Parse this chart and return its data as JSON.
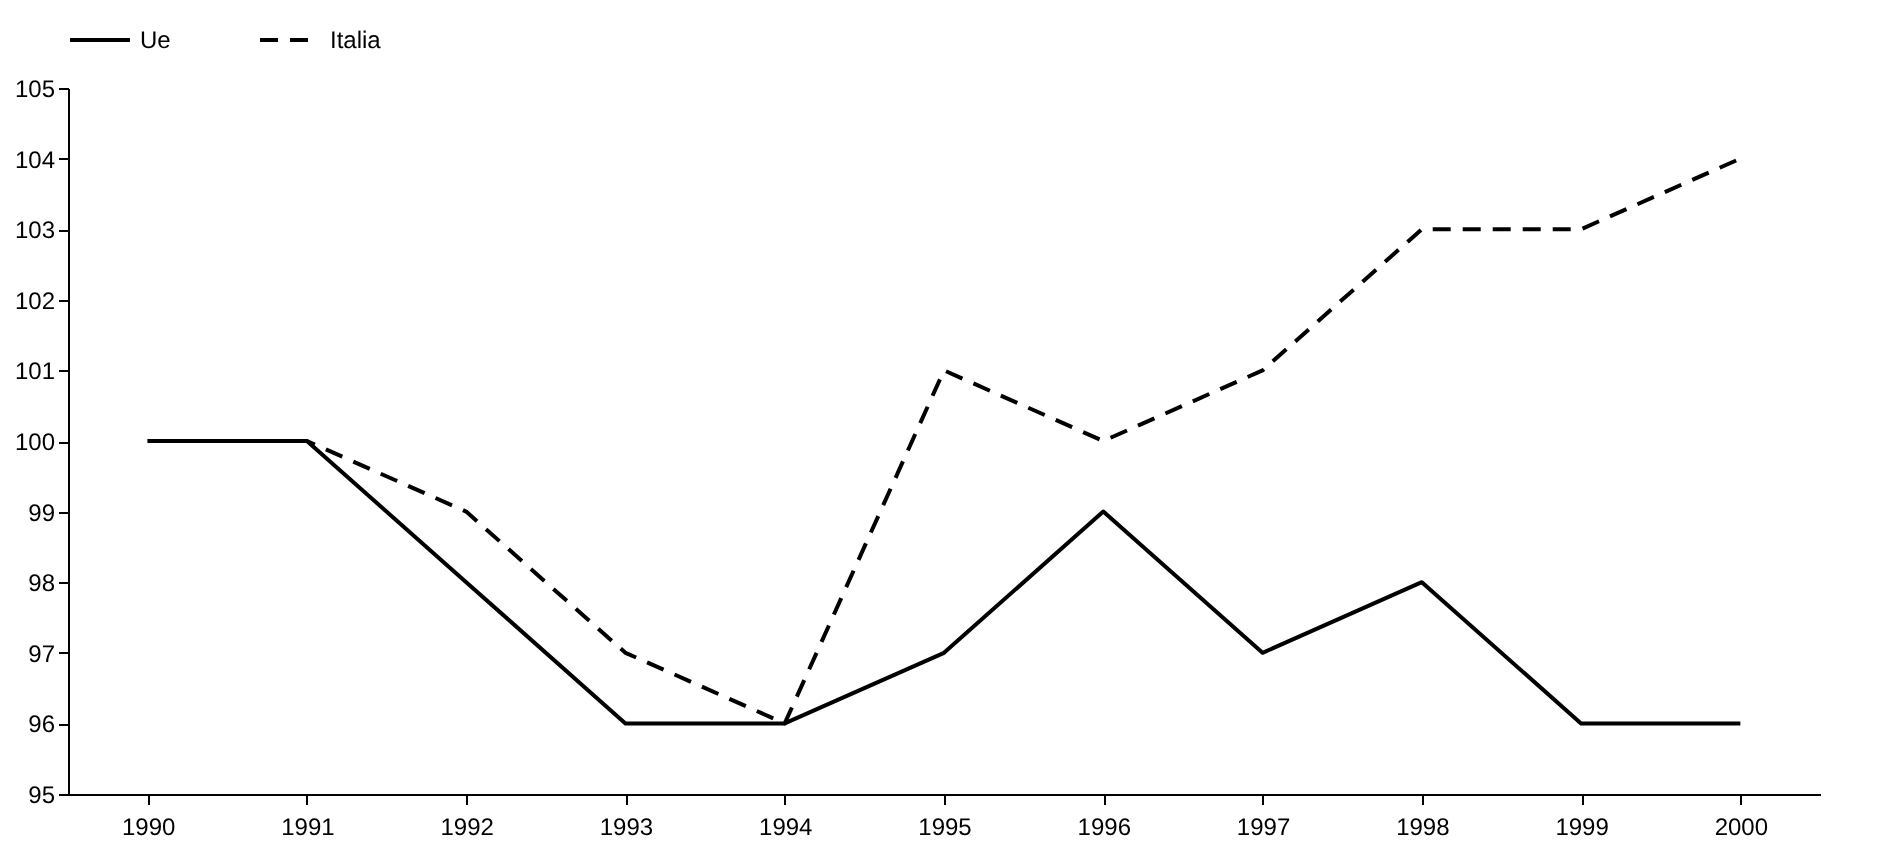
{
  "chart_data": {
    "type": "line",
    "categories": [
      "1990",
      "1991",
      "1992",
      "1993",
      "1994",
      "1995",
      "1996",
      "1997",
      "1998",
      "1999",
      "2000"
    ],
    "series": [
      {
        "name": "Ue",
        "color": "#000000",
        "line_style": "solid",
        "values": [
          100,
          100,
          98,
          96,
          96,
          97,
          99,
          97,
          98,
          96,
          96
        ]
      },
      {
        "name": "Italia",
        "color": "#000000",
        "line_style": "dashed",
        "values": [
          100,
          100,
          99,
          97,
          96,
          101,
          100,
          101,
          103,
          103,
          104
        ]
      }
    ],
    "ylim": [
      95,
      105
    ],
    "yticks": [
      95,
      96,
      97,
      98,
      99,
      100,
      101,
      102,
      103,
      104,
      105
    ],
    "grid": false,
    "legend": "top",
    "marker": "none"
  }
}
